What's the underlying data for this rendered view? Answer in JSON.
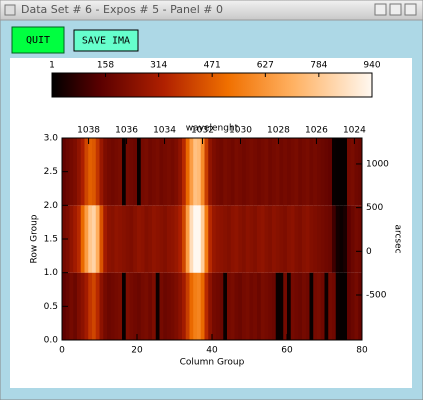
{
  "window": {
    "title": "Data Set # 6 - Expos # 5 - Panel # 0"
  },
  "buttons": [
    "QUIT",
    "SAVE IMA"
  ],
  "chart_data": {
    "type": "heatmap",
    "xlabel": "Column Group",
    "ylabel": "Row Group",
    "x2label": "wavelenght",
    "y2label": "arcsec",
    "xlim": [
      0,
      80
    ],
    "xticks": [
      0,
      20,
      40,
      60,
      80
    ],
    "ylim": [
      0,
      3
    ],
    "yticks": [
      {
        "value": 0,
        "label": "0.0"
      },
      {
        "value": 0.5,
        "label": "0.5"
      },
      {
        "value": 1,
        "label": "1.0"
      },
      {
        "value": 1.5,
        "label": "1.5"
      },
      {
        "value": 2,
        "label": "2.0"
      },
      {
        "value": 2.5,
        "label": "2.5"
      },
      {
        "value": 3,
        "label": "3.0"
      }
    ],
    "x2lim": [
      1039.4,
      1023.6
    ],
    "x2ticks": [
      1038,
      1036,
      1034,
      1032,
      1030,
      1028,
      1026,
      1024
    ],
    "y2lim": [
      -1015,
      1297
    ],
    "y2ticks": [
      -500,
      0,
      500,
      1000
    ],
    "clim": [
      1,
      940
    ],
    "cticks": [
      1,
      158,
      314,
      471,
      627,
      784,
      940
    ],
    "z": [
      [
        150,
        170,
        200,
        180,
        220,
        250,
        300,
        380,
        420,
        350,
        250,
        200,
        180,
        190,
        200,
        210,
        10,
        220,
        200,
        190,
        180,
        200,
        210,
        190,
        220,
        20,
        200,
        180,
        190,
        200,
        220,
        250,
        300,
        400,
        500,
        560,
        580,
        500,
        350,
        250,
        200,
        190,
        180,
        15,
        200,
        210,
        190,
        180,
        200,
        210,
        190,
        200,
        180,
        210,
        200,
        190,
        180,
        15,
        15,
        200,
        20,
        200,
        190,
        180,
        200,
        190,
        15,
        200,
        210,
        190,
        20,
        200,
        190,
        15,
        10,
        10,
        160,
        180,
        200,
        170
      ],
      [
        200,
        220,
        260,
        300,
        350,
        500,
        650,
        780,
        820,
        700,
        450,
        300,
        250,
        240,
        260,
        250,
        240,
        230,
        220,
        240,
        260,
        250,
        230,
        240,
        260,
        250,
        240,
        230,
        250,
        260,
        280,
        320,
        420,
        650,
        850,
        940,
        940,
        800,
        550,
        350,
        280,
        260,
        250,
        240,
        230,
        250,
        260,
        240,
        230,
        250,
        240,
        230,
        250,
        260,
        240,
        230,
        250,
        240,
        230,
        220,
        240,
        250,
        230,
        220,
        240,
        250,
        230,
        220,
        210,
        200,
        190,
        180,
        100,
        30,
        20,
        40,
        150,
        180,
        200,
        190
      ],
      [
        160,
        180,
        200,
        220,
        260,
        320,
        420,
        480,
        460,
        380,
        280,
        220,
        200,
        190,
        200,
        210,
        15,
        200,
        190,
        180,
        10,
        200,
        210,
        190,
        200,
        210,
        190,
        200,
        210,
        200,
        220,
        260,
        350,
        500,
        650,
        760,
        740,
        600,
        400,
        260,
        220,
        200,
        190,
        210,
        200,
        190,
        210,
        200,
        190,
        200,
        210,
        200,
        190,
        200,
        210,
        190,
        200,
        210,
        190,
        200,
        190,
        200,
        210,
        190,
        200,
        210,
        190,
        200,
        190,
        180,
        170,
        160,
        15,
        10,
        10,
        10,
        200,
        210,
        190,
        180
      ]
    ]
  }
}
